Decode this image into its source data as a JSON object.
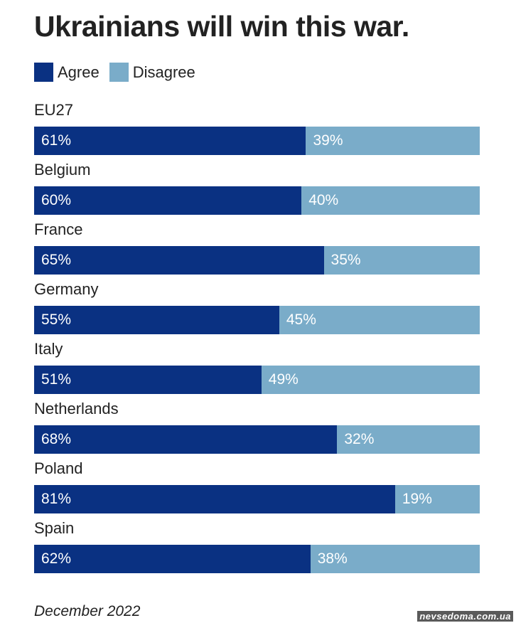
{
  "colors": {
    "agree": "#0a3182",
    "disagree": "#7aacc9"
  },
  "chart_data": {
    "type": "bar",
    "orientation": "horizontal",
    "stacked": true,
    "title": "Ukrainians will win this war.",
    "legend": [
      "Agree",
      "Disagree"
    ],
    "categories": [
      "EU27",
      "Belgium",
      "France",
      "Germany",
      "Italy",
      "Netherlands",
      "Poland",
      "Spain"
    ],
    "series": [
      {
        "name": "Agree",
        "values": [
          61,
          60,
          65,
          55,
          51,
          68,
          81,
          62
        ]
      },
      {
        "name": "Disagree",
        "values": [
          39,
          40,
          35,
          45,
          49,
          32,
          19,
          38
        ]
      }
    ],
    "unit": "%",
    "xlim": [
      0,
      100
    ]
  },
  "footer": "December 2022",
  "watermark": "nevsedoma.com.ua"
}
